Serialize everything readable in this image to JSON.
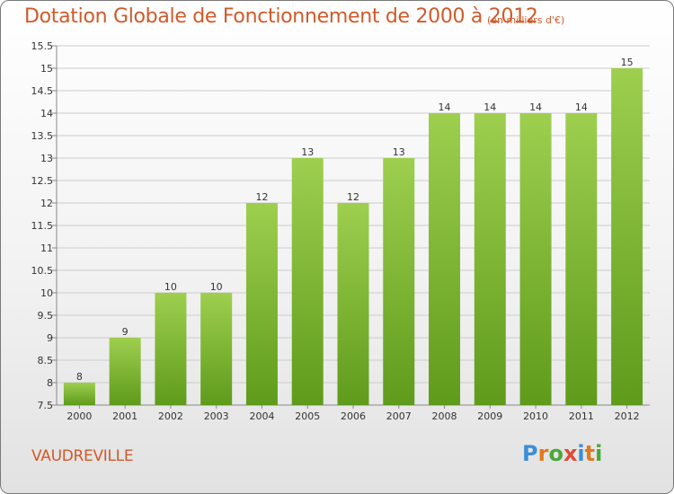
{
  "header": {
    "title": "Dotation Globale de Fonctionnement de 2000 à 2012",
    "unit_note": "(en milliers d'€)"
  },
  "footer": {
    "commune": "VAUDREVILLE",
    "logo_text": "Proxiti"
  },
  "colors": {
    "title": "#d05a2a",
    "bar_top": "#9ecf4f",
    "bar_bottom": "#5f9b1b",
    "grid": "#cccccc"
  },
  "chart_data": {
    "type": "bar",
    "title": "Dotation Globale de Fonctionnement de 2000 à 2012",
    "subtitle": "(en milliers d'€)",
    "xlabel": "",
    "ylabel": "",
    "categories": [
      "2000",
      "2001",
      "2002",
      "2003",
      "2004",
      "2005",
      "2006",
      "2007",
      "2008",
      "2009",
      "2010",
      "2011",
      "2012"
    ],
    "values": [
      8,
      9,
      10,
      10,
      12,
      13,
      12,
      13,
      14,
      14,
      14,
      14,
      15
    ],
    "data_labels": [
      "8",
      "9",
      "10",
      "10",
      "12",
      "13",
      "12",
      "13",
      "14",
      "14",
      "14",
      "14",
      "15"
    ],
    "ylim": [
      7.5,
      15.5
    ],
    "yticks": [
      7.5,
      8,
      8.5,
      9,
      9.5,
      10,
      10.5,
      11,
      11.5,
      12,
      12.5,
      13,
      13.5,
      14,
      14.5,
      15,
      15.5
    ],
    "ytick_labels": [
      "7.5",
      "8",
      "8.5",
      "9",
      "9.5",
      "10",
      "10.5",
      "11",
      "11.5",
      "12",
      "12.5",
      "13",
      "13.5",
      "14",
      "14.5",
      "15",
      "15.5"
    ],
    "grid": true,
    "legend": "none"
  }
}
